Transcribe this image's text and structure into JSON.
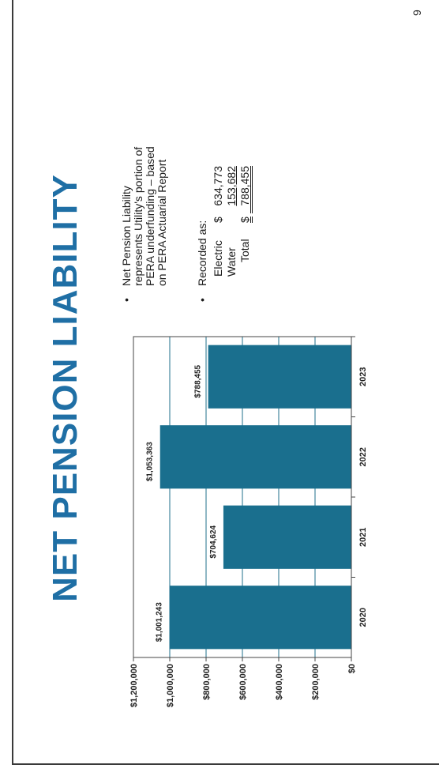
{
  "slide": {
    "title": "NET PENSION LIABILITY",
    "page_number": "9"
  },
  "chart_data": {
    "type": "bar",
    "categories": [
      "2020",
      "2021",
      "2022",
      "2023"
    ],
    "values": [
      1001243,
      704624,
      1053363,
      788455
    ],
    "data_labels": [
      "$1,001,243",
      "$704,624",
      "$1,053,363",
      "$788,455"
    ],
    "ytick_labels": [
      "$0",
      "$200,000",
      "$400,000",
      "$600,000",
      "$800,000",
      "$1,000,000",
      "$1,200,000"
    ],
    "ylim": [
      0,
      1200000
    ],
    "grid": true,
    "bar_color": "#1a6f8e"
  },
  "notes": {
    "bullet1": [
      "Net Pension Liability",
      "represents Utility's portion of",
      "PERA underfunding – based",
      "on PERA Actuarial Report"
    ],
    "bullet2_heading": "Recorded as:",
    "recorded": [
      {
        "label": "Electric",
        "symbol": "$",
        "amount": "634,773"
      },
      {
        "label": "Water",
        "symbol": "",
        "amount": "153,682"
      },
      {
        "label": "Total",
        "symbol": "$",
        "amount": "788,455"
      }
    ]
  }
}
